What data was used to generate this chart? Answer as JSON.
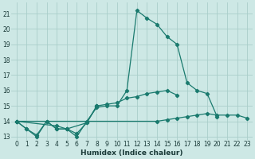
{
  "title": "",
  "xlabel": "Humidex (Indice chaleur)",
  "xlim": [
    -0.5,
    23.5
  ],
  "ylim": [
    12.8,
    21.7
  ],
  "yticks": [
    13,
    14,
    15,
    16,
    17,
    18,
    19,
    20,
    21
  ],
  "xticks": [
    0,
    1,
    2,
    3,
    4,
    5,
    6,
    7,
    8,
    9,
    10,
    11,
    12,
    13,
    14,
    15,
    16,
    17,
    18,
    19,
    20,
    21,
    22,
    23
  ],
  "background_color": "#cde8e5",
  "line_color": "#1a7a6e",
  "grid_color": "#aaceca",
  "curve1_x": [
    0,
    1,
    2,
    3,
    4,
    5,
    6,
    7,
    8,
    9,
    10,
    11,
    12,
    13,
    14,
    15,
    16,
    17,
    18,
    19,
    20
  ],
  "curve1_y": [
    14.0,
    13.5,
    13.0,
    14.0,
    13.5,
    13.5,
    13.0,
    14.0,
    14.9,
    15.0,
    15.0,
    16.0,
    21.2,
    20.7,
    20.3,
    19.5,
    19.0,
    16.5,
    16.0,
    15.8,
    14.3
  ],
  "curve2_x": [
    0,
    1,
    2,
    3,
    4,
    5,
    6,
    7,
    8
  ],
  "curve2_y": [
    14.0,
    13.5,
    13.1,
    14.0,
    13.5,
    13.5,
    13.2,
    13.9,
    15.0
  ],
  "curve3_x": [
    0,
    4,
    5,
    7,
    8,
    9,
    10,
    11,
    12,
    13,
    14,
    15,
    16
  ],
  "curve3_y": [
    14.0,
    13.7,
    13.5,
    13.9,
    15.0,
    15.1,
    15.2,
    15.5,
    15.6,
    15.8,
    15.9,
    16.0,
    15.7
  ],
  "curve4_x": [
    0,
    14,
    15,
    16,
    17,
    18,
    19,
    20,
    21,
    22,
    23
  ],
  "curve4_y": [
    14.0,
    14.0,
    14.1,
    14.2,
    14.3,
    14.4,
    14.5,
    14.4,
    14.4,
    14.4,
    14.2
  ]
}
